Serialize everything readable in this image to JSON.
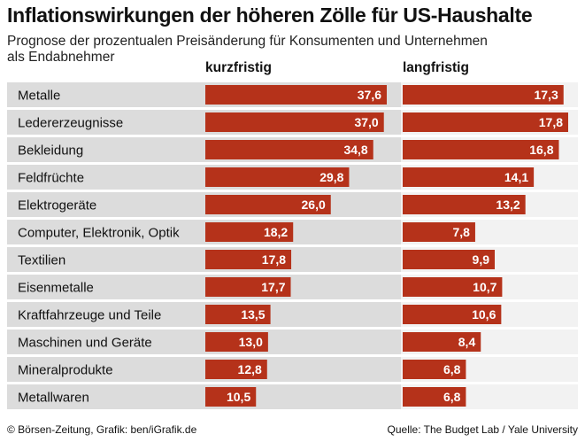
{
  "title": "Inflationswirkungen der höheren Zölle für US-Haushalte",
  "subtitle": "Prognose der prozentualen Preisänderung für Konsumenten und Unternehmen als Endabnehmer",
  "source_left": "© Börsen-Zeitung, Grafik: ben/iGrafik.de",
  "source_right": "Quelle: The Budget Lab / Yale University",
  "colors": {
    "bar": "#b5321a",
    "row_band": "#dcdcdc",
    "row_band_light": "#f2f2f2",
    "label_text": "#ffffff"
  },
  "chart_data": {
    "type": "bar",
    "orientation": "horizontal",
    "title": "Inflationswirkungen der höheren Zölle für US-Haushalte",
    "categories": [
      "Metalle",
      "Ledererzeugnisse",
      "Bekleidung",
      "Feldfrüchte",
      "Elektrogeräte",
      "Computer, Elektronik, Optik",
      "Textilien",
      "Eisenmetalle",
      "Kraftfahrzeuge und Teile",
      "Maschinen und Geräte",
      "Mineralprodukte",
      "Metallwaren"
    ],
    "series": [
      {
        "name": "kurzfristig",
        "values": [
          37.6,
          37.0,
          34.8,
          29.8,
          26.0,
          18.2,
          17.8,
          17.7,
          13.5,
          13.0,
          12.8,
          10.5
        ],
        "labels": [
          "37,6",
          "37,0",
          "34,8",
          "29,8",
          "26,0",
          "18,2",
          "17,8",
          "17,7",
          "13,5",
          "13,0",
          "12,8",
          "10,5"
        ],
        "xlim": [
          0,
          37.6
        ]
      },
      {
        "name": "langfristig",
        "values": [
          17.3,
          17.8,
          16.8,
          14.1,
          13.2,
          7.8,
          9.9,
          10.7,
          10.6,
          8.4,
          6.8,
          6.8
        ],
        "labels": [
          "17,3",
          "17,8",
          "16,8",
          "14,1",
          "13,2",
          "7,8",
          "9,9",
          "10,7",
          "10,6",
          "8,4",
          "6,8",
          "6,8"
        ],
        "xlim": [
          0,
          17.8
        ]
      }
    ]
  }
}
